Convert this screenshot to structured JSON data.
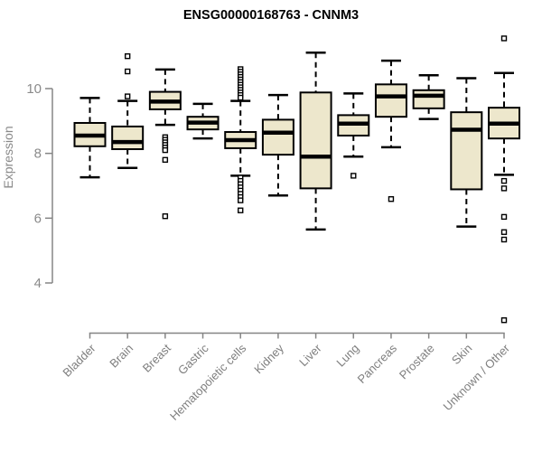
{
  "window": {
    "title": "ENSG00000168763 - CNNM3"
  },
  "chart_data": {
    "type": "boxplot",
    "title": "ENSG00000168763 - CNNM3",
    "xlabel": "",
    "ylabel": "Expression",
    "yticks": [
      4,
      6,
      8,
      10
    ],
    "ylim": [
      2.5,
      11.8
    ],
    "grid": false,
    "legend": "none",
    "categories": [
      "Bladder",
      "Brain",
      "Breast",
      "Gastric",
      "Hematopoietic cells",
      "Kidney",
      "Liver",
      "Lung",
      "Pancreas",
      "Prostate",
      "Skin",
      "Unknown / Other"
    ],
    "boxes": [
      {
        "category": "Bladder",
        "whisker_low": 7.26,
        "q1": 8.22,
        "median": 8.55,
        "q3": 8.94,
        "whisker_high": 9.71,
        "outliers": []
      },
      {
        "category": "Brain",
        "whisker_low": 7.55,
        "q1": 8.13,
        "median": 8.35,
        "q3": 8.83,
        "whisker_high": 9.62,
        "outliers": [
          11.0,
          10.53,
          9.76
        ]
      },
      {
        "category": "Breast",
        "whisker_low": 8.88,
        "q1": 9.36,
        "median": 9.6,
        "q3": 9.9,
        "whisker_high": 10.59,
        "outliers": [
          8.5,
          8.42,
          8.34,
          8.26,
          8.18,
          8.1,
          7.8,
          6.06
        ]
      },
      {
        "category": "Gastric",
        "whisker_low": 8.46,
        "q1": 8.74,
        "median": 8.95,
        "q3": 9.13,
        "whisker_high": 9.53,
        "outliers": []
      },
      {
        "category": "Hematopoietic cells",
        "whisker_low": 7.31,
        "q1": 8.16,
        "median": 8.41,
        "q3": 8.66,
        "whisker_high": 9.62,
        "outliers": [
          10.6,
          10.52,
          10.44,
          10.36,
          10.28,
          10.2,
          10.12,
          10.04,
          9.96,
          9.88,
          9.8,
          9.72,
          7.25,
          7.15,
          7.05,
          6.95,
          6.85,
          6.75,
          6.65,
          6.55,
          6.24
        ]
      },
      {
        "category": "Kidney",
        "whisker_low": 6.7,
        "q1": 7.96,
        "median": 8.64,
        "q3": 9.04,
        "whisker_high": 9.8,
        "outliers": []
      },
      {
        "category": "Liver",
        "whisker_low": 5.65,
        "q1": 6.92,
        "median": 7.9,
        "q3": 9.88,
        "whisker_high": 11.11,
        "outliers": []
      },
      {
        "category": "Lung",
        "whisker_low": 7.9,
        "q1": 8.55,
        "median": 8.92,
        "q3": 9.18,
        "whisker_high": 9.85,
        "outliers": [
          7.31
        ]
      },
      {
        "category": "Pancreas",
        "whisker_low": 8.19,
        "q1": 9.13,
        "median": 9.76,
        "q3": 10.13,
        "whisker_high": 10.86,
        "outliers": [
          6.59
        ]
      },
      {
        "category": "Prostate",
        "whisker_low": 9.06,
        "q1": 9.39,
        "median": 9.78,
        "q3": 9.95,
        "whisker_high": 10.41,
        "outliers": []
      },
      {
        "category": "Skin",
        "whisker_low": 5.74,
        "q1": 6.89,
        "median": 8.73,
        "q3": 9.27,
        "whisker_high": 10.32,
        "outliers": []
      },
      {
        "category": "Unknown / Other",
        "whisker_low": 7.34,
        "q1": 8.46,
        "median": 8.92,
        "q3": 9.41,
        "whisker_high": 10.48,
        "outliers": [
          11.55,
          7.15,
          6.92,
          6.04,
          5.57,
          5.34,
          2.85
        ]
      }
    ],
    "colors": {
      "box_fill": "#ede7cc",
      "box_stroke": "#000000",
      "median": "#000000",
      "whisker": "#000000",
      "outlier_fill": "#ffffff",
      "axis": "#858585",
      "tick_label": "#8a8a8a",
      "category_label": "#7f7f7f",
      "title": "#000000",
      "background": "#ffffff"
    }
  }
}
